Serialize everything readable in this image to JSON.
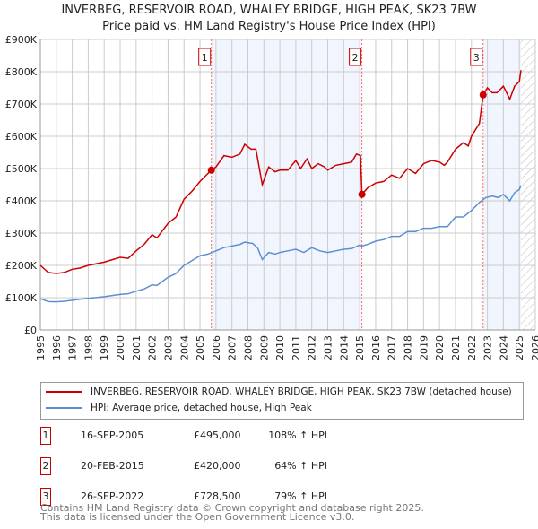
{
  "title": "INVERBEG, RESERVOIR ROAD, WHALEY BRIDGE, HIGH PEAK, SK23 7BW",
  "subtitle": "Price paid vs. HM Land Registry's House Price Index (HPI)",
  "chart_data": {
    "type": "line",
    "xlim": [
      1995,
      2026
    ],
    "ylim": [
      0,
      900000
    ],
    "yticks": [
      {
        "v": 0,
        "label": "£0"
      },
      {
        "v": 100000,
        "label": "£100K"
      },
      {
        "v": 200000,
        "label": "£200K"
      },
      {
        "v": 300000,
        "label": "£300K"
      },
      {
        "v": 400000,
        "label": "£400K"
      },
      {
        "v": 500000,
        "label": "£500K"
      },
      {
        "v": 600000,
        "label": "£600K"
      },
      {
        "v": 700000,
        "label": "£700K"
      },
      {
        "v": 800000,
        "label": "£800K"
      },
      {
        "v": 900000,
        "label": "£900K"
      }
    ],
    "xticks": [
      "1995",
      "1996",
      "1997",
      "1998",
      "1999",
      "2000",
      "2001",
      "2002",
      "2003",
      "2004",
      "2005",
      "2006",
      "2007",
      "2008",
      "2009",
      "2010",
      "2011",
      "2012",
      "2013",
      "2014",
      "2015",
      "2016",
      "2017",
      "2018",
      "2019",
      "2020",
      "2021",
      "2022",
      "2023",
      "2024",
      "2025",
      "2026"
    ],
    "series": [
      {
        "name": "INVERBEG, RESERVOIR ROAD, WHALEY BRIDGE, HIGH PEAK, SK23 7BW (detached house)",
        "color": "#cc0000",
        "x": [
          1995,
          1995.5,
          1996,
          1996.5,
          1997,
          1997.5,
          1998,
          1999,
          2000,
          2000.5,
          2001,
          2001.5,
          2002,
          2002.3,
          2003,
          2003.5,
          2004,
          2004.5,
          2005,
          2005.3,
          2005.7,
          2006,
          2006.5,
          2007,
          2007.5,
          2007.8,
          2008.2,
          2008.5,
          2008.9,
          2009.3,
          2009.7,
          2010,
          2010.5,
          2011,
          2011.3,
          2011.7,
          2012,
          2012.4,
          2012.8,
          2013,
          2013.5,
          2014,
          2014.5,
          2014.8,
          2015.05,
          2015.14,
          2015.5,
          2016,
          2016.5,
          2017,
          2017.5,
          2018,
          2018.5,
          2019,
          2019.5,
          2020,
          2020.3,
          2020.5,
          2021,
          2021.5,
          2021.8,
          2022,
          2022.5,
          2022.73,
          2023,
          2023.3,
          2023.6,
          2024,
          2024.4,
          2024.7,
          2025,
          2025.1
        ],
        "y": [
          200000,
          178000,
          175000,
          178000,
          188000,
          192000,
          200000,
          210000,
          225000,
          222000,
          245000,
          265000,
          295000,
          285000,
          330000,
          350000,
          405000,
          430000,
          460000,
          475000,
          495000,
          505000,
          540000,
          535000,
          545000,
          575000,
          560000,
          560000,
          450000,
          505000,
          490000,
          495000,
          495000,
          525000,
          500000,
          530000,
          500000,
          515000,
          505000,
          495000,
          510000,
          515000,
          520000,
          545000,
          540000,
          420000,
          440000,
          455000,
          460000,
          480000,
          470000,
          500000,
          485000,
          515000,
          525000,
          520000,
          510000,
          520000,
          560000,
          580000,
          570000,
          600000,
          640000,
          728500,
          750000,
          735000,
          735000,
          755000,
          715000,
          755000,
          770000,
          805000
        ]
      },
      {
        "name": "HPI: Average price, detached house, High Peak",
        "color": "#5b8fd4",
        "x": [
          1995,
          1995.5,
          1996,
          1996.5,
          1997,
          1997.5,
          1998,
          1999,
          2000,
          2000.5,
          2001,
          2001.5,
          2002,
          2002.3,
          2003,
          2003.5,
          2004,
          2004.5,
          2005,
          2005.5,
          2006,
          2006.5,
          2007,
          2007.5,
          2007.8,
          2008.3,
          2008.6,
          2008.9,
          2009.3,
          2009.7,
          2010,
          2010.5,
          2011,
          2011.5,
          2012,
          2012.5,
          2013,
          2013.5,
          2014,
          2014.5,
          2015,
          2015.14,
          2015.5,
          2016,
          2016.5,
          2017,
          2017.5,
          2018,
          2018.5,
          2019,
          2019.5,
          2020,
          2020.5,
          2021,
          2021.5,
          2022,
          2022.5,
          2022.9,
          2023.3,
          2023.7,
          2024,
          2024.4,
          2024.7,
          2025,
          2025.1
        ],
        "y": [
          97000,
          88000,
          87000,
          89000,
          92000,
          95000,
          98000,
          103000,
          110000,
          112000,
          120000,
          127000,
          140000,
          138000,
          163000,
          175000,
          200000,
          215000,
          230000,
          235000,
          245000,
          255000,
          260000,
          265000,
          272000,
          268000,
          255000,
          218000,
          240000,
          235000,
          240000,
          245000,
          250000,
          240000,
          255000,
          245000,
          240000,
          245000,
          250000,
          252000,
          263000,
          260000,
          265000,
          275000,
          280000,
          290000,
          290000,
          305000,
          305000,
          315000,
          315000,
          320000,
          320000,
          350000,
          350000,
          370000,
          395000,
          410000,
          415000,
          410000,
          420000,
          400000,
          425000,
          435000,
          448000
        ]
      }
    ],
    "sales": [
      {
        "num": "1",
        "date": "16-SEP-2005",
        "price": "£495,000",
        "hpi": "108% ↑ HPI",
        "x": 2005.71,
        "y": 495000
      },
      {
        "num": "2",
        "date": "20-FEB-2015",
        "price": "£420,000",
        "hpi": "64% ↑ HPI",
        "x": 2015.14,
        "y": 420000
      },
      {
        "num": "3",
        "date": "26-SEP-2022",
        "price": "£728,500",
        "hpi": "79% ↑ HPI",
        "x": 2022.73,
        "y": 728500
      }
    ],
    "shaded": [
      [
        2005.71,
        2015.14
      ],
      [
        2022.73,
        2025.1
      ]
    ],
    "forecast_start": 2025.1
  },
  "footer": [
    "Contains HM Land Registry data © Crown copyright and database right 2025.",
    "This data is licensed under the Open Government Licence v3.0."
  ]
}
